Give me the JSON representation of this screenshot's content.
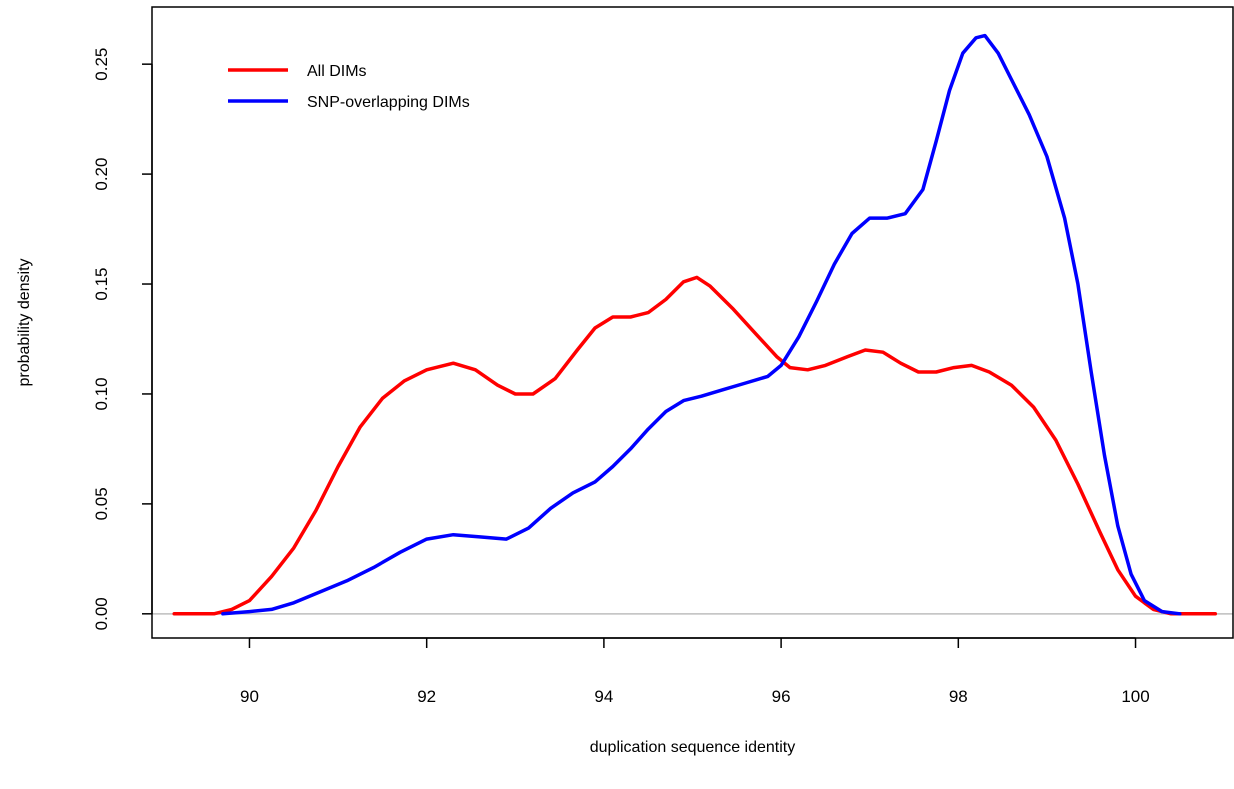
{
  "chart_data": {
    "type": "line",
    "title": "",
    "xlabel": "duplication sequence identity",
    "ylabel": "probability density",
    "xlim": [
      88.9,
      101.1
    ],
    "ylim": [
      -0.011,
      0.276
    ],
    "x_ticks": [
      90,
      92,
      94,
      96,
      98,
      100
    ],
    "x_tick_labels": [
      "90",
      "92",
      "94",
      "96",
      "98",
      "100"
    ],
    "y_ticks": [
      0,
      0.05,
      0.1,
      0.15,
      0.2,
      0.25
    ],
    "y_tick_labels": [
      "0.00",
      "0.05",
      "0.10",
      "0.15",
      "0.20",
      "0.25"
    ],
    "reference_line": {
      "y": 0,
      "color": "#bebebe"
    },
    "grid": false,
    "legend": {
      "placement": "top-left"
    },
    "series": [
      {
        "name": "All DIMs",
        "color": "#ff0000",
        "x": [
          89.15,
          89.6,
          89.8,
          90.0,
          90.25,
          90.5,
          90.75,
          91.0,
          91.25,
          91.5,
          91.75,
          92.0,
          92.3,
          92.55,
          92.8,
          93.0,
          93.2,
          93.45,
          93.7,
          93.9,
          94.1,
          94.3,
          94.5,
          94.7,
          94.9,
          95.05,
          95.2,
          95.45,
          95.7,
          95.95,
          96.1,
          96.3,
          96.5,
          96.75,
          96.95,
          97.15,
          97.35,
          97.55,
          97.75,
          97.95,
          98.15,
          98.35,
          98.6,
          98.85,
          99.1,
          99.35,
          99.6,
          99.8,
          100.0,
          100.2,
          100.4,
          100.6,
          100.9
        ],
        "y": [
          0.0,
          0.0,
          0.002,
          0.006,
          0.017,
          0.03,
          0.047,
          0.067,
          0.085,
          0.098,
          0.106,
          0.111,
          0.114,
          0.111,
          0.104,
          0.1,
          0.1,
          0.107,
          0.12,
          0.13,
          0.135,
          0.135,
          0.137,
          0.143,
          0.151,
          0.153,
          0.149,
          0.139,
          0.128,
          0.117,
          0.112,
          0.111,
          0.113,
          0.117,
          0.12,
          0.119,
          0.114,
          0.11,
          0.11,
          0.112,
          0.113,
          0.11,
          0.104,
          0.094,
          0.079,
          0.059,
          0.037,
          0.02,
          0.008,
          0.002,
          0.0,
          0.0,
          0.0
        ]
      },
      {
        "name": "SNP-overlapping DIMs",
        "color": "#0000ff",
        "x": [
          89.7,
          90.0,
          90.25,
          90.5,
          90.8,
          91.1,
          91.4,
          91.7,
          92.0,
          92.3,
          92.6,
          92.9,
          93.15,
          93.4,
          93.65,
          93.9,
          94.1,
          94.3,
          94.5,
          94.7,
          94.9,
          95.1,
          95.35,
          95.6,
          95.85,
          96.0,
          96.2,
          96.4,
          96.6,
          96.8,
          97.0,
          97.2,
          97.4,
          97.6,
          97.75,
          97.9,
          98.05,
          98.2,
          98.3,
          98.45,
          98.6,
          98.8,
          99.0,
          99.2,
          99.35,
          99.5,
          99.65,
          99.8,
          99.95,
          100.1,
          100.3,
          100.5
        ],
        "y": [
          0.0,
          0.001,
          0.002,
          0.005,
          0.01,
          0.015,
          0.021,
          0.028,
          0.034,
          0.036,
          0.035,
          0.034,
          0.039,
          0.048,
          0.055,
          0.06,
          0.067,
          0.075,
          0.084,
          0.092,
          0.097,
          0.099,
          0.102,
          0.105,
          0.108,
          0.113,
          0.126,
          0.142,
          0.159,
          0.173,
          0.18,
          0.18,
          0.182,
          0.193,
          0.215,
          0.238,
          0.255,
          0.262,
          0.263,
          0.255,
          0.243,
          0.227,
          0.208,
          0.18,
          0.15,
          0.11,
          0.072,
          0.04,
          0.018,
          0.006,
          0.001,
          0.0
        ]
      }
    ]
  }
}
